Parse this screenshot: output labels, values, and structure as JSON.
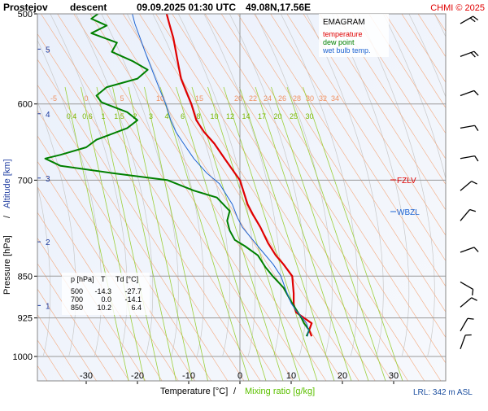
{
  "header": {
    "station": "Prostejov",
    "mode": "descent",
    "datetime": "09.09.2025 01:30 UTC",
    "coords": "49.08N,17.56E",
    "copyright": "CHMI © 2025"
  },
  "legend": {
    "title": "EMAGRAM",
    "items": [
      {
        "label": "temperature",
        "color": "#e00000"
      },
      {
        "label": "dew point",
        "color": "#008000"
      },
      {
        "label": "wet bulb temp.",
        "color": "#1e64d2"
      }
    ]
  },
  "axes": {
    "xlabel_temp": "Temperature [°C]",
    "xlabel_sep": "/",
    "xlabel_mix": "Mixing ratio [g/kg]",
    "ylabel_p": "Pressure [hPa]",
    "ylabel_sep": "/",
    "ylabel_alt": "Altitude [km]"
  },
  "markers": {
    "fzlv": "FZLV",
    "wbzl": "WBZL",
    "lrl": "LRL: 342 m ASL"
  },
  "table": {
    "headers": [
      "p [hPa]",
      "T",
      "Td [°C]"
    ],
    "rows": [
      [
        "500",
        "-14.3",
        "-27.7"
      ],
      [
        "700",
        "0.0",
        "-14.1"
      ],
      [
        "850",
        "10.2",
        "6.4"
      ]
    ]
  },
  "chart_data": {
    "type": "line",
    "title": "Prostejov descent 09.09.2025 01:30 UTC 49.08N,17.56E",
    "xlabel": "Temperature [°C] / Mixing ratio [g/kg]",
    "ylabel": "Pressure [hPa] / Altitude [km]",
    "xlim": [
      -40,
      40
    ],
    "ylim": [
      1000,
      500
    ],
    "y_scale": "log",
    "x_ticks": [
      -30,
      -20,
      -10,
      0,
      10,
      20,
      30
    ],
    "y_ticks": [
      500,
      600,
      700,
      850,
      925,
      1000
    ],
    "altitude_ticks_km": [
      1,
      2,
      3,
      4,
      5
    ],
    "dry_adiabat_labels": [
      "-5",
      "0",
      "5",
      "10",
      "15",
      "20",
      "22",
      "24",
      "26",
      "28",
      "30",
      "32",
      "34"
    ],
    "mixing_ratio_labels": [
      "0.4",
      "0.6",
      "1",
      "1.5",
      "2",
      "3",
      "4",
      "6",
      "8",
      "10",
      "12",
      "14",
      "17",
      "20",
      "25",
      "30"
    ],
    "series": [
      {
        "name": "temperature",
        "color": "#e00000",
        "points": [
          [
            14.0,
            960
          ],
          [
            13.5,
            948
          ],
          [
            14.0,
            935
          ],
          [
            12.5,
            925
          ],
          [
            11.0,
            915
          ],
          [
            10.5,
            900
          ],
          [
            10.5,
            880
          ],
          [
            10.2,
            850
          ],
          [
            8.5,
            830
          ],
          [
            7.0,
            815
          ],
          [
            5.5,
            795
          ],
          [
            4.0,
            770
          ],
          [
            2.5,
            750
          ],
          [
            1.5,
            735
          ],
          [
            0.0,
            700
          ],
          [
            -1.0,
            690
          ],
          [
            -3.0,
            670
          ],
          [
            -5.0,
            650
          ],
          [
            -7.0,
            635
          ],
          [
            -8.5,
            620
          ],
          [
            -9.5,
            600
          ],
          [
            -10.5,
            585
          ],
          [
            -11.5,
            570
          ],
          [
            -12.0,
            555
          ],
          [
            -12.5,
            540
          ],
          [
            -13.0,
            525
          ],
          [
            -13.8,
            510
          ],
          [
            -14.3,
            500
          ]
        ]
      },
      {
        "name": "dew point",
        "color": "#008000",
        "points": [
          [
            13.0,
            960
          ],
          [
            13.5,
            948
          ],
          [
            12.5,
            935
          ],
          [
            12.0,
            925
          ],
          [
            11.0,
            910
          ],
          [
            10.0,
            895
          ],
          [
            8.5,
            870
          ],
          [
            6.4,
            850
          ],
          [
            5.0,
            835
          ],
          [
            3.5,
            815
          ],
          [
            1.0,
            800
          ],
          [
            -1.0,
            790
          ],
          [
            -2.0,
            775
          ],
          [
            -2.5,
            760
          ],
          [
            -2.0,
            745
          ],
          [
            -4.5,
            725
          ],
          [
            -9.0,
            715
          ],
          [
            -14.1,
            700
          ],
          [
            -25.0,
            690
          ],
          [
            -35.0,
            680
          ],
          [
            -38.0,
            670
          ],
          [
            -35.0,
            665
          ],
          [
            -30.0,
            655
          ],
          [
            -28.0,
            645
          ],
          [
            -26.0,
            640
          ],
          [
            -22.0,
            630
          ],
          [
            -20.0,
            620
          ],
          [
            -22.0,
            610
          ],
          [
            -27.0,
            598
          ],
          [
            -28.0,
            590
          ],
          [
            -26.0,
            580
          ],
          [
            -20.0,
            570
          ],
          [
            -18.0,
            560
          ],
          [
            -21.0,
            550
          ],
          [
            -25.0,
            540
          ],
          [
            -24.0,
            530
          ],
          [
            -29.0,
            520
          ],
          [
            -26.0,
            512
          ],
          [
            -29.0,
            505
          ],
          [
            -27.7,
            500
          ]
        ]
      },
      {
        "name": "wet bulb temp.",
        "color": "#1e64d2",
        "points": [
          [
            13.2,
            960
          ],
          [
            13.4,
            948
          ],
          [
            13.0,
            935
          ],
          [
            12.2,
            925
          ],
          [
            11.0,
            912
          ],
          [
            10.0,
            898
          ],
          [
            9.0,
            875
          ],
          [
            8.0,
            850
          ],
          [
            6.5,
            830
          ],
          [
            4.5,
            810
          ],
          [
            2.5,
            790
          ],
          [
            0.5,
            770
          ],
          [
            -0.5,
            755
          ],
          [
            -1.5,
            735
          ],
          [
            -4.0,
            705
          ],
          [
            -6.5,
            690
          ],
          [
            -9.0,
            670
          ],
          [
            -11.0,
            650
          ],
          [
            -12.5,
            635
          ],
          [
            -13.5,
            620
          ],
          [
            -14.5,
            600
          ],
          [
            -15.5,
            585
          ],
          [
            -16.5,
            570
          ],
          [
            -17.5,
            555
          ],
          [
            -18.5,
            540
          ],
          [
            -19.5,
            525
          ],
          [
            -20.5,
            510
          ],
          [
            -21.0,
            500
          ]
        ]
      }
    ],
    "wind_barbs": [
      {
        "p": 510,
        "dir": 240,
        "speed_kt": 20
      },
      {
        "p": 545,
        "dir": 250,
        "speed_kt": 15
      },
      {
        "p": 590,
        "dir": 250,
        "speed_kt": 10
      },
      {
        "p": 630,
        "dir": 260,
        "speed_kt": 10
      },
      {
        "p": 670,
        "dir": 260,
        "speed_kt": 10
      },
      {
        "p": 715,
        "dir": 230,
        "speed_kt": 10
      },
      {
        "p": 760,
        "dir": 220,
        "speed_kt": 10
      },
      {
        "p": 810,
        "dir": 250,
        "speed_kt": 10
      },
      {
        "p": 860,
        "dir": 300,
        "speed_kt": 10
      },
      {
        "p": 905,
        "dir": 230,
        "speed_kt": 10
      },
      {
        "p": 950,
        "dir": 210,
        "speed_kt": 10
      },
      {
        "p": 985,
        "dir": 200,
        "speed_kt": 10
      }
    ]
  }
}
